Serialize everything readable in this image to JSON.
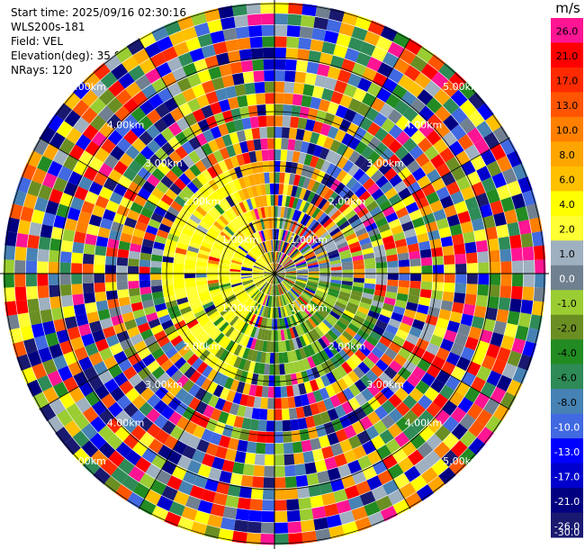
{
  "header": {
    "start_time": "Start time: 2025/09/16 02:30:16",
    "station": "WLS200s-181",
    "field": "Field: VEL",
    "elevation": "Elevation(deg): 35.00",
    "nrays": "NRays: 120"
  },
  "colorbar": {
    "unit": "m/s",
    "ticks": [
      "26.0",
      "21.0",
      "17.0",
      "13.0",
      "10.0",
      "8.0",
      "6.0",
      "4.0",
      "2.0",
      "1.0",
      "0.0",
      "-1.0",
      "-2.0",
      "-4.0",
      "-6.0",
      "-8.0",
      "-10.0",
      "-13.0",
      "-17.0",
      "-21.0",
      "-26.0",
      "-30.0"
    ],
    "colors": [
      "#ff1493",
      "#ff0000",
      "#ff2a00",
      "#ff5500",
      "#ff7f00",
      "#ffa500",
      "#ffc000",
      "#ffff00",
      "#ffff33",
      "#9fb0c0",
      "#708090",
      "#9acd32",
      "#6b8e23",
      "#228b22",
      "#2e8b57",
      "#4682b4",
      "#4169e1",
      "#0000ff",
      "#0000cd",
      "#000080",
      "#191970"
    ]
  },
  "ppi": {
    "range_labels": [
      "1.00km",
      "2.00km",
      "3.00km",
      "4.00km",
      "5.00km"
    ],
    "nrays": 120
  }
}
